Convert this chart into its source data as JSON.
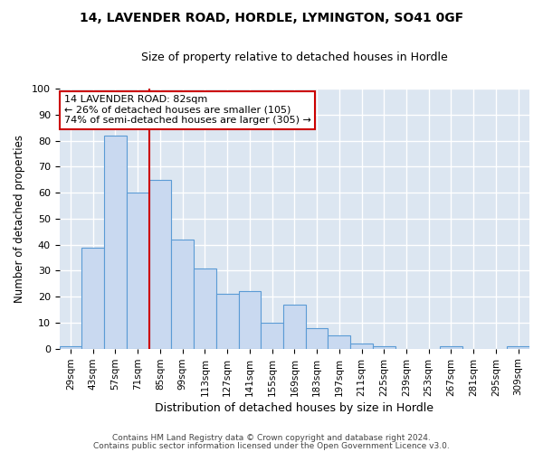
{
  "title1": "14, LAVENDER ROAD, HORDLE, LYMINGTON, SO41 0GF",
  "title2": "Size of property relative to detached houses in Hordle",
  "xlabel": "Distribution of detached houses by size in Hordle",
  "ylabel": "Number of detached properties",
  "footer1": "Contains HM Land Registry data © Crown copyright and database right 2024.",
  "footer2": "Contains public sector information licensed under the Open Government Licence v3.0.",
  "bin_labels": [
    "29sqm",
    "43sqm",
    "57sqm",
    "71sqm",
    "85sqm",
    "99sqm",
    "113sqm",
    "127sqm",
    "141sqm",
    "155sqm",
    "169sqm",
    "183sqm",
    "197sqm",
    "211sqm",
    "225sqm",
    "239sqm",
    "253sqm",
    "267sqm",
    "281sqm",
    "295sqm",
    "309sqm"
  ],
  "bin_values": [
    1,
    39,
    82,
    60,
    65,
    42,
    31,
    21,
    22,
    10,
    17,
    8,
    5,
    2,
    1,
    0,
    0,
    1,
    0,
    0,
    1
  ],
  "bar_color": "#c9d9f0",
  "bar_edge_color": "#5b9bd5",
  "bar_width": 1.0,
  "vline_x_index": 3.5,
  "vline_color": "#cc0000",
  "annotation_title": "14 LAVENDER ROAD: 82sqm",
  "annotation_line1": "← 26% of detached houses are smaller (105)",
  "annotation_line2": "74% of semi-detached houses are larger (305) →",
  "annotation_box_facecolor": "#ffffff",
  "annotation_box_edgecolor": "#cc0000",
  "ylim": [
    0,
    100
  ],
  "yticks": [
    0,
    10,
    20,
    30,
    40,
    50,
    60,
    70,
    80,
    90,
    100
  ],
  "bg_color": "#dce6f1",
  "fig_bg_color": "#ffffff",
  "grid_color": "#ffffff"
}
